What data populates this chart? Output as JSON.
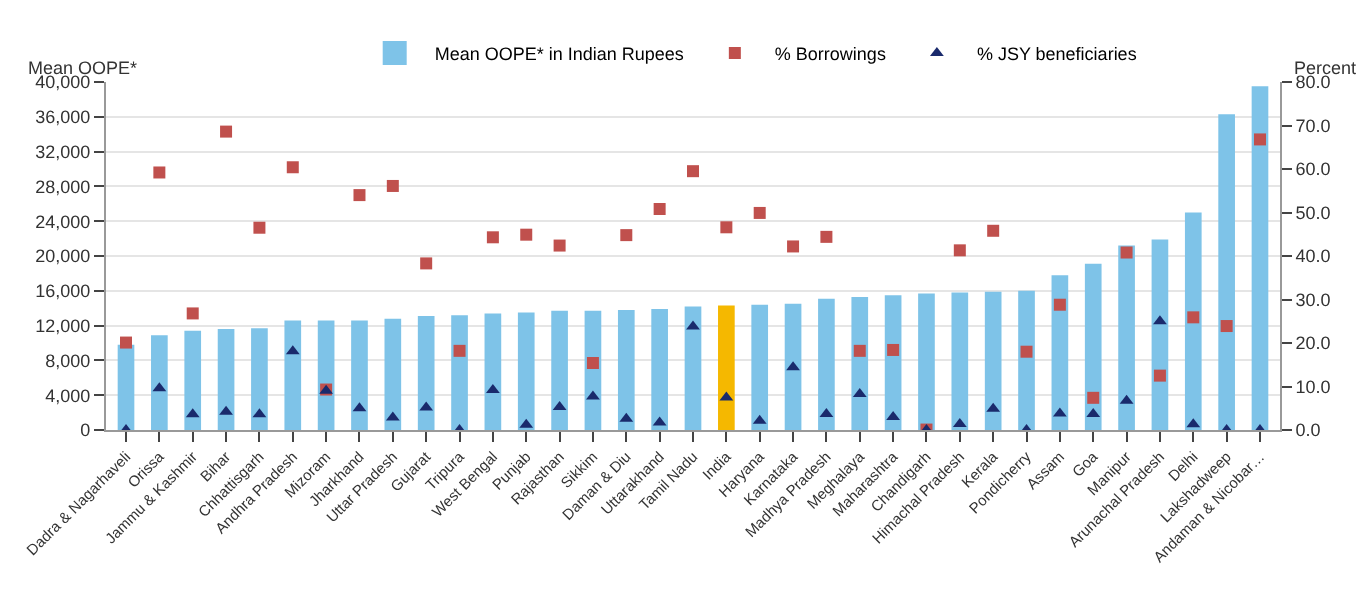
{
  "chart_data": {
    "type": "bar",
    "ylabel": "Mean OOPE*",
    "y2label": "Percent",
    "categories": [
      "Dadra & Nagarhaveli",
      "Orissa",
      "Jammu & Kashmir",
      "Bihar",
      "Chhattisgarh",
      "Andhra Pradesh",
      "Mizoram",
      "Jharkhand",
      "Uttar Pradesh",
      "Gujarat",
      "Tripura",
      "West Bengal",
      "Punjab",
      "Rajasthan",
      "Sikkim",
      "Daman & Diu",
      "Uttarakhand",
      "Tamil Nadu",
      "India",
      "Haryana",
      "Karnataka",
      "Madhya Pradesh",
      "Meghalaya",
      "Maharashtra",
      "Chandigarh",
      "Himachal Pradesh",
      "Kerala",
      "Pondicherry",
      "Assam",
      "Goa",
      "Manipur",
      "Arunachal Pradesh",
      "Delhi",
      "Lakshadweep",
      "Andaman & Nicobar…"
    ],
    "series": [
      {
        "name": "Mean OOPE* in Indian Rupees",
        "color": "#7ec3e8",
        "colors": [
          "#7ec3e8",
          "#7ec3e8",
          "#7ec3e8",
          "#7ec3e8",
          "#7ec3e8",
          "#7ec3e8",
          "#7ec3e8",
          "#7ec3e8",
          "#7ec3e8",
          "#7ec3e8",
          "#7ec3e8",
          "#7ec3e8",
          "#7ec3e8",
          "#7ec3e8",
          "#7ec3e8",
          "#7ec3e8",
          "#7ec3e8",
          "#7ec3e8",
          "#f5b800",
          "#7ec3e8",
          "#7ec3e8",
          "#7ec3e8",
          "#7ec3e8",
          "#7ec3e8",
          "#7ec3e8",
          "#7ec3e8",
          "#7ec3e8",
          "#7ec3e8",
          "#7ec3e8",
          "#7ec3e8",
          "#7ec3e8",
          "#7ec3e8",
          "#7ec3e8",
          "#7ec3e8",
          "#7ec3e8"
        ],
        "values": [
          9800,
          10900,
          11400,
          11600,
          11700,
          12600,
          12600,
          12600,
          12800,
          13100,
          13200,
          13400,
          13500,
          13700,
          13700,
          13800,
          13900,
          14200,
          14300,
          14400,
          14500,
          15100,
          15300,
          15500,
          15700,
          15800,
          15900,
          16000,
          17800,
          19100,
          21200,
          21900,
          25000,
          36300,
          39500
        ]
      },
      {
        "name": "% Borrowings",
        "type": "scatter",
        "axis": "y2",
        "marker": "square",
        "color": "#c0504d",
        "values": [
          20.1,
          59.2,
          26.8,
          68.6,
          46.5,
          60.4,
          9.3,
          54.0,
          56.1,
          38.3,
          18.2,
          44.3,
          44.9,
          42.4,
          15.4,
          44.8,
          50.8,
          59.5,
          46.6,
          49.9,
          42.2,
          44.4,
          18.2,
          18.4,
          0.1,
          41.3,
          45.8,
          18.0,
          28.8,
          7.4,
          40.8,
          12.5,
          25.9,
          23.9,
          66.8
        ]
      },
      {
        "name": "% JSY beneficiaries",
        "type": "scatter",
        "axis": "y2",
        "marker": "triangle",
        "color": "#1a2a6c",
        "values": [
          0,
          9.6,
          3.6,
          4.2,
          3.6,
          18.1,
          9.0,
          5.0,
          2.9,
          5.2,
          0,
          9.2,
          1.2,
          5.3,
          7.7,
          2.6,
          1.7,
          23.8,
          7.5,
          2.1,
          14.4,
          3.7,
          8.3,
          3.0,
          0,
          1.4,
          4.9,
          0,
          3.8,
          3.7,
          6.7,
          25.0,
          1.3,
          0,
          0
        ]
      }
    ],
    "ylim": [
      0,
      40000
    ],
    "yticks": [
      {
        "value": 0,
        "label": "0"
      },
      {
        "value": 4000,
        "label": "4,000"
      },
      {
        "value": 8000,
        "label": "8,000"
      },
      {
        "value": 12000,
        "label": "12,000"
      },
      {
        "value": 16000,
        "label": "16,000"
      },
      {
        "value": 20000,
        "label": "20,000"
      },
      {
        "value": 24000,
        "label": "24,000"
      },
      {
        "value": 28000,
        "label": "28,000"
      },
      {
        "value": 32000,
        "label": "32,000"
      },
      {
        "value": 36000,
        "label": "36,000"
      },
      {
        "value": 40000,
        "label": "40,000"
      }
    ],
    "y2lim": [
      0,
      80
    ],
    "y2ticks": [
      {
        "value": 0,
        "label": "0.0"
      },
      {
        "value": 10,
        "label": "10.0"
      },
      {
        "value": 20,
        "label": "20.0"
      },
      {
        "value": 30,
        "label": "30.0"
      },
      {
        "value": 40,
        "label": "40.0"
      },
      {
        "value": 50,
        "label": "50.0"
      },
      {
        "value": 60,
        "label": "60.0"
      },
      {
        "value": 70,
        "label": "70.0"
      },
      {
        "value": 80,
        "label": "80.0"
      }
    ],
    "grid": "y",
    "legend": "top"
  }
}
